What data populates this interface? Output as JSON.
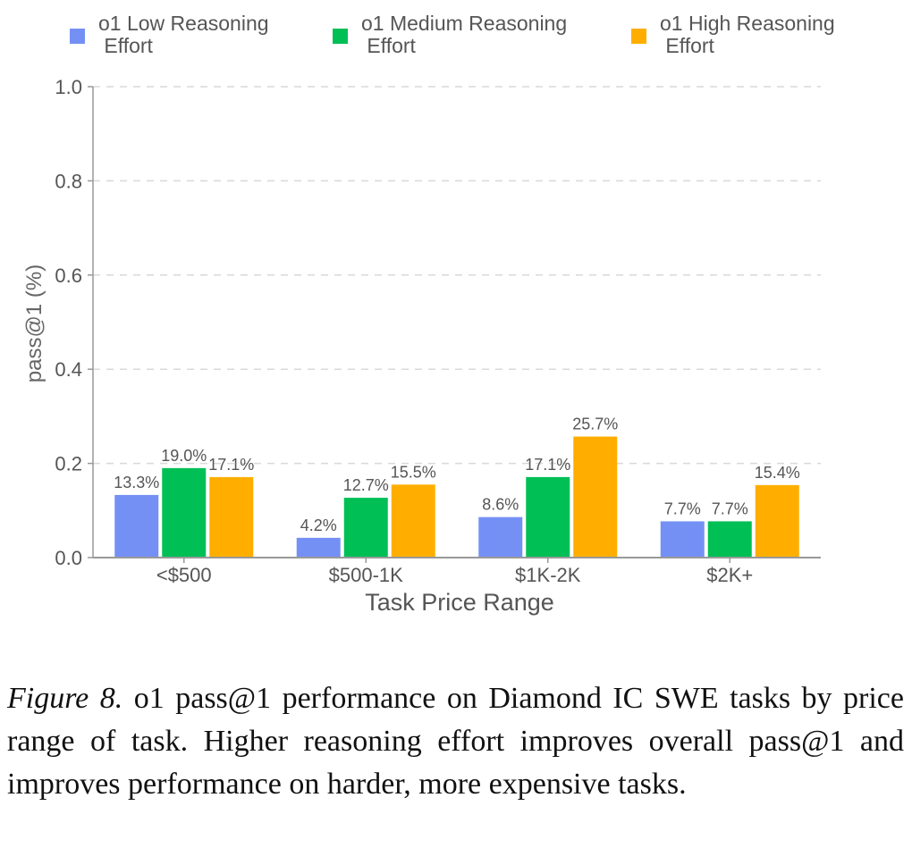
{
  "chart_data": {
    "type": "bar",
    "title": "",
    "xlabel": "Task Price Range",
    "ylabel": "pass@1 (%)",
    "ylim": [
      0,
      1.0
    ],
    "yticks": [
      "0.0",
      "0.2",
      "0.4",
      "0.6",
      "0.8",
      "1.0"
    ],
    "grid": "horizontal dashed",
    "legend_position": "top",
    "categories": [
      "<$500",
      "$500-1K",
      "$1K-2K",
      "$2K+"
    ],
    "series": [
      {
        "name": "o1 Low Reasoning Effort",
        "legend_lines": [
          "o1 Low Reasoning",
          " Effort"
        ],
        "color": "#7590F5",
        "values": [
          0.133,
          0.042,
          0.086,
          0.077
        ],
        "labels": [
          "13.3%",
          "4.2%",
          "8.6%",
          "7.7%"
        ]
      },
      {
        "name": "o1 Medium Reasoning Effort",
        "legend_lines": [
          "o1 Medium Reasoning",
          " Effort"
        ],
        "color": "#00BF55",
        "values": [
          0.19,
          0.127,
          0.171,
          0.077
        ],
        "labels": [
          "19.0%",
          "12.7%",
          "17.1%",
          "7.7%"
        ]
      },
      {
        "name": "o1 High Reasoning Effort",
        "legend_lines": [
          "o1 High Reasoning",
          " Effort"
        ],
        "color": "#FFAE00",
        "values": [
          0.171,
          0.155,
          0.257,
          0.154
        ],
        "labels": [
          "17.1%",
          "15.5%",
          "25.7%",
          "15.4%"
        ]
      }
    ]
  },
  "caption": {
    "figure_label": "Figure 8.",
    "text": " o1 pass@1 performance on Diamond IC SWE tasks by price range of task.  Higher reasoning effort improves overall pass@1 and improves performance on harder, more expensive tasks."
  }
}
